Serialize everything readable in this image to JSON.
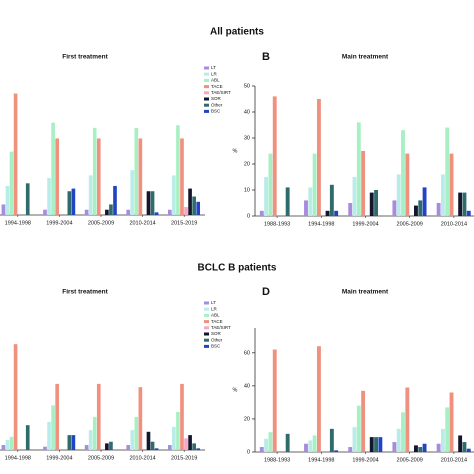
{
  "headings": [
    "All patients",
    "BCLC B patients"
  ],
  "chart_data": [
    {
      "type": "bar",
      "title": "First treatment",
      "categories": [
        "1994-1998",
        "1999-2004",
        "2005-2009",
        "2010-2014",
        "2015-2019"
      ],
      "ylim": [
        0,
        50
      ],
      "legend": true,
      "series": [
        {
          "name": "LT",
          "color": "#a78bdc",
          "values": [
            4,
            2,
            2,
            2,
            2
          ]
        },
        {
          "name": "LR",
          "color": "#b8ece8",
          "values": [
            11,
            14,
            15,
            17,
            15
          ]
        },
        {
          "name": "ABL",
          "color": "#a8f0c4",
          "values": [
            24,
            35,
            33,
            33,
            34
          ]
        },
        {
          "name": "TACE",
          "color": "#f0907e",
          "values": [
            46,
            29,
            29,
            29,
            29
          ]
        },
        {
          "name": "TAE/SIRT",
          "color": "#f4a8c4",
          "values": [
            0,
            0,
            0,
            0,
            3
          ]
        },
        {
          "name": "SOR",
          "color": "#15152e",
          "values": [
            0,
            0,
            2,
            9,
            10
          ]
        },
        {
          "name": "Other",
          "color": "#2e6b6b",
          "values": [
            12,
            9,
            4,
            9,
            7
          ]
        },
        {
          "name": "BSC",
          "color": "#2244c4",
          "values": [
            0,
            10,
            11,
            1,
            5
          ]
        }
      ]
    },
    {
      "type": "bar",
      "panel_label": "B",
      "title": "Main treatment",
      "ylabel": "%",
      "categories": [
        "1988-1993",
        "1994-1998",
        "1999-2004",
        "2005-2009",
        "2010-2014"
      ],
      "ylim": [
        0,
        50
      ],
      "yticks": [
        0,
        10,
        20,
        30,
        40,
        50
      ],
      "legend": false,
      "series": [
        {
          "color": "#a78bdc",
          "values": [
            2,
            6,
            5,
            6,
            5
          ]
        },
        {
          "color": "#b8ece8",
          "values": [
            15,
            11,
            15,
            16,
            16
          ]
        },
        {
          "color": "#a8f0c4",
          "values": [
            24,
            24,
            36,
            33,
            34
          ]
        },
        {
          "color": "#f0907e",
          "values": [
            46,
            45,
            25,
            24,
            24
          ]
        },
        {
          "color": "#f4a8c4",
          "values": [
            0,
            0,
            0,
            0,
            0
          ]
        },
        {
          "color": "#15152e",
          "values": [
            0,
            2,
            9,
            4,
            9
          ]
        },
        {
          "color": "#2e6b6b",
          "values": [
            11,
            12,
            10,
            6,
            9
          ]
        },
        {
          "color": "#2244c4",
          "values": [
            0,
            2,
            0,
            11,
            2
          ]
        }
      ]
    },
    {
      "type": "bar",
      "title": "First treatment",
      "categories": [
        "1994-1998",
        "1999-2004",
        "2005-2009",
        "2010-2014",
        "2015-2019"
      ],
      "ylim": [
        0,
        75
      ],
      "legend": true,
      "series": [
        {
          "name": "LT",
          "color": "#a78bdc",
          "values": [
            3,
            2,
            3,
            3,
            3
          ]
        },
        {
          "name": "LR",
          "color": "#b8ece8",
          "values": [
            6,
            17,
            12,
            12,
            14
          ]
        },
        {
          "name": "ABL",
          "color": "#a8f0c4",
          "values": [
            8,
            27,
            20,
            20,
            23
          ]
        },
        {
          "name": "TACE",
          "color": "#f0907e",
          "values": [
            64,
            40,
            40,
            38,
            40
          ]
        },
        {
          "name": "TAE/SIRT",
          "color": "#f4a8c4",
          "values": [
            0,
            0,
            0,
            0,
            7
          ]
        },
        {
          "name": "SOR",
          "color": "#15152e",
          "values": [
            0,
            0,
            4,
            11,
            9
          ]
        },
        {
          "name": "Other",
          "color": "#2e6b6b",
          "values": [
            15,
            9,
            5,
            5,
            4
          ]
        },
        {
          "name": "BSC",
          "color": "#2244c4",
          "values": [
            0,
            9,
            0,
            1,
            1
          ]
        }
      ]
    },
    {
      "type": "bar",
      "panel_label": "D",
      "title": "Main treatment",
      "ylabel": "%",
      "categories": [
        "1988-1993",
        "1994-1998",
        "1999-2004",
        "2005-2009",
        "2010-2014"
      ],
      "ylim": [
        0,
        75
      ],
      "yticks": [
        0,
        20,
        40,
        60
      ],
      "legend": false,
      "series": [
        {
          "color": "#a78bdc",
          "values": [
            3,
            5,
            3,
            6,
            5
          ]
        },
        {
          "color": "#b8ece8",
          "values": [
            8,
            7,
            15,
            14,
            14
          ]
        },
        {
          "color": "#a8f0c4",
          "values": [
            12,
            10,
            28,
            24,
            27
          ]
        },
        {
          "color": "#f0907e",
          "values": [
            62,
            64,
            37,
            39,
            36
          ]
        },
        {
          "color": "#f4a8c4",
          "values": [
            0,
            0,
            0,
            0,
            0
          ]
        },
        {
          "color": "#15152e",
          "values": [
            0,
            0,
            9,
            4,
            10
          ]
        },
        {
          "color": "#2e6b6b",
          "values": [
            11,
            14,
            9,
            3,
            6
          ]
        },
        {
          "color": "#2244c4",
          "values": [
            0,
            1,
            9,
            5,
            2
          ]
        }
      ]
    }
  ]
}
